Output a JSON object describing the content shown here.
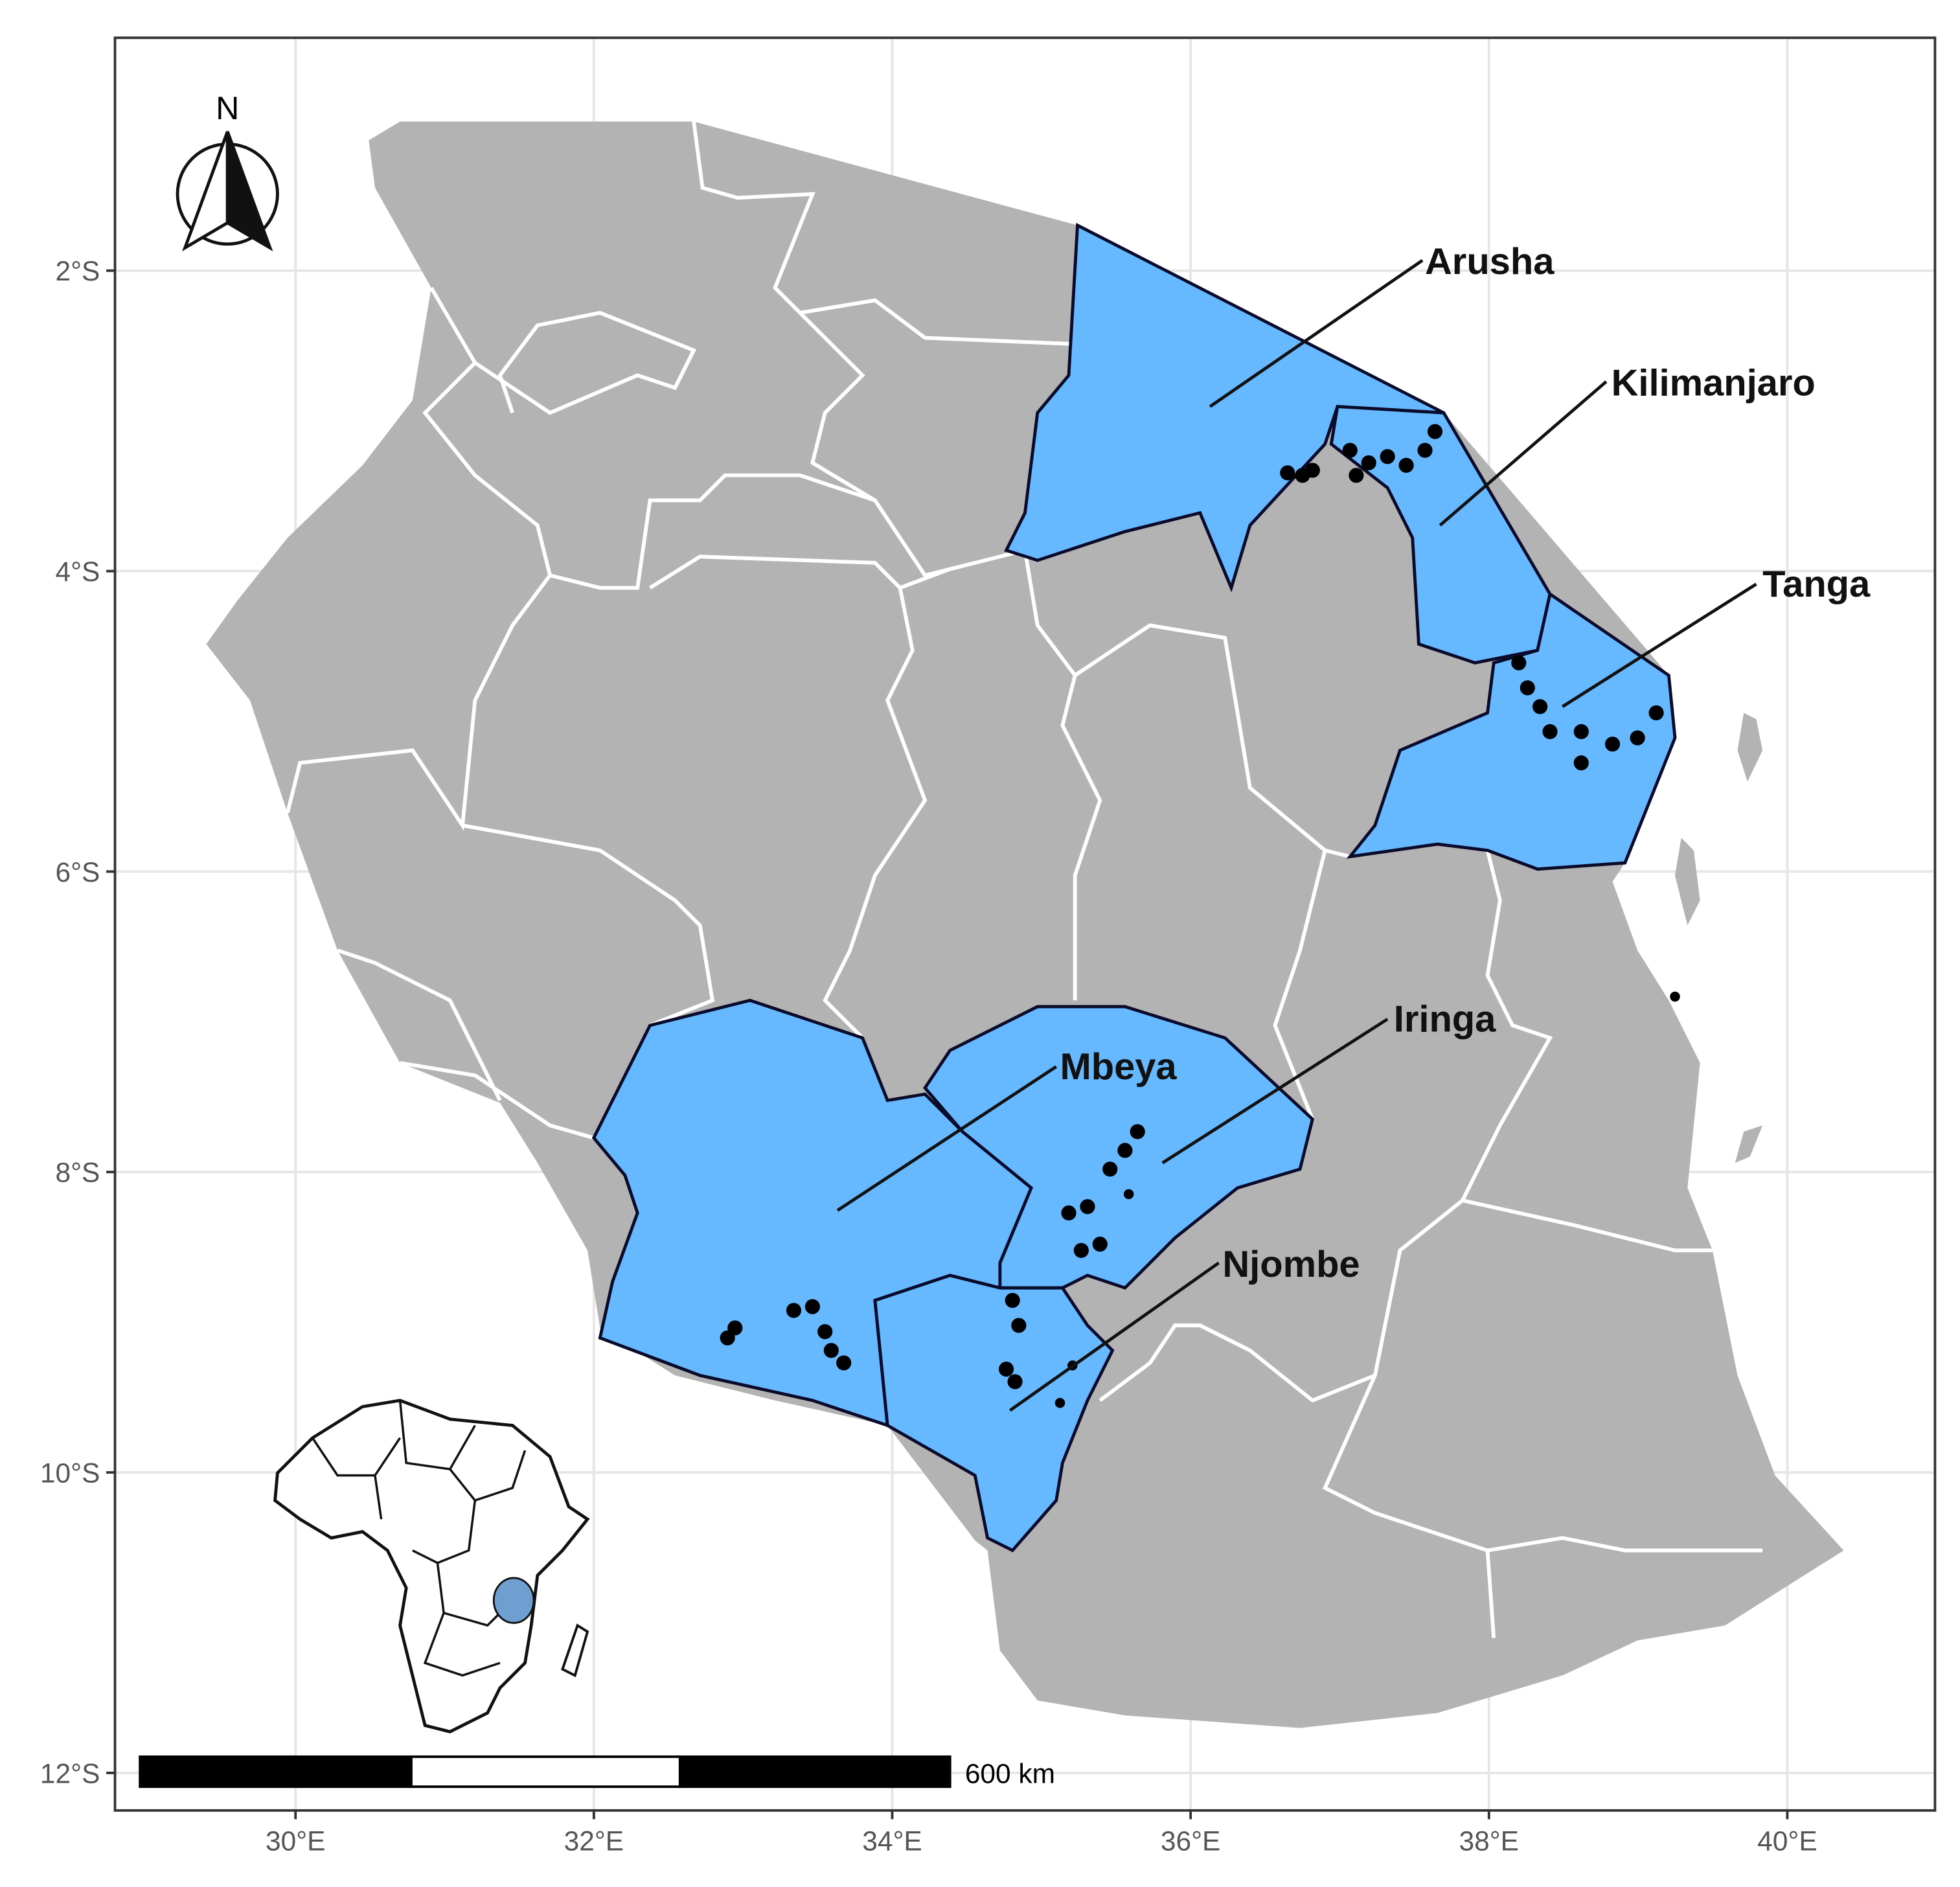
{
  "map": {
    "xlim": [
      28.79,
      40.99
    ],
    "ylim": [
      -12.25,
      -0.45
    ],
    "xticks": [
      {
        "value": 30,
        "label": "30°E"
      },
      {
        "value": 32,
        "label": "32°E"
      },
      {
        "value": 34,
        "label": "34°E"
      },
      {
        "value": 36,
        "label": "36°E"
      },
      {
        "value": 38,
        "label": "38°E"
      },
      {
        "value": 40,
        "label": "40°E"
      }
    ],
    "yticks": [
      {
        "value": -2,
        "label": "2°S"
      },
      {
        "value": -4,
        "label": "4°S"
      },
      {
        "value": -6,
        "label": "6°S"
      },
      {
        "value": -8,
        "label": "8°S"
      },
      {
        "value": -10,
        "label": "10°S"
      },
      {
        "value": -12,
        "label": "12°S"
      }
    ],
    "grid": true,
    "highlight_color": "#66b8ff",
    "regions": [
      {
        "name": "Arusha"
      },
      {
        "name": "Kilimanjaro"
      },
      {
        "name": "Tanga"
      },
      {
        "name": "Iringa"
      },
      {
        "name": "Mbeya"
      },
      {
        "name": "Njombe"
      }
    ],
    "north_label": "N",
    "scale_label": "600 km"
  }
}
